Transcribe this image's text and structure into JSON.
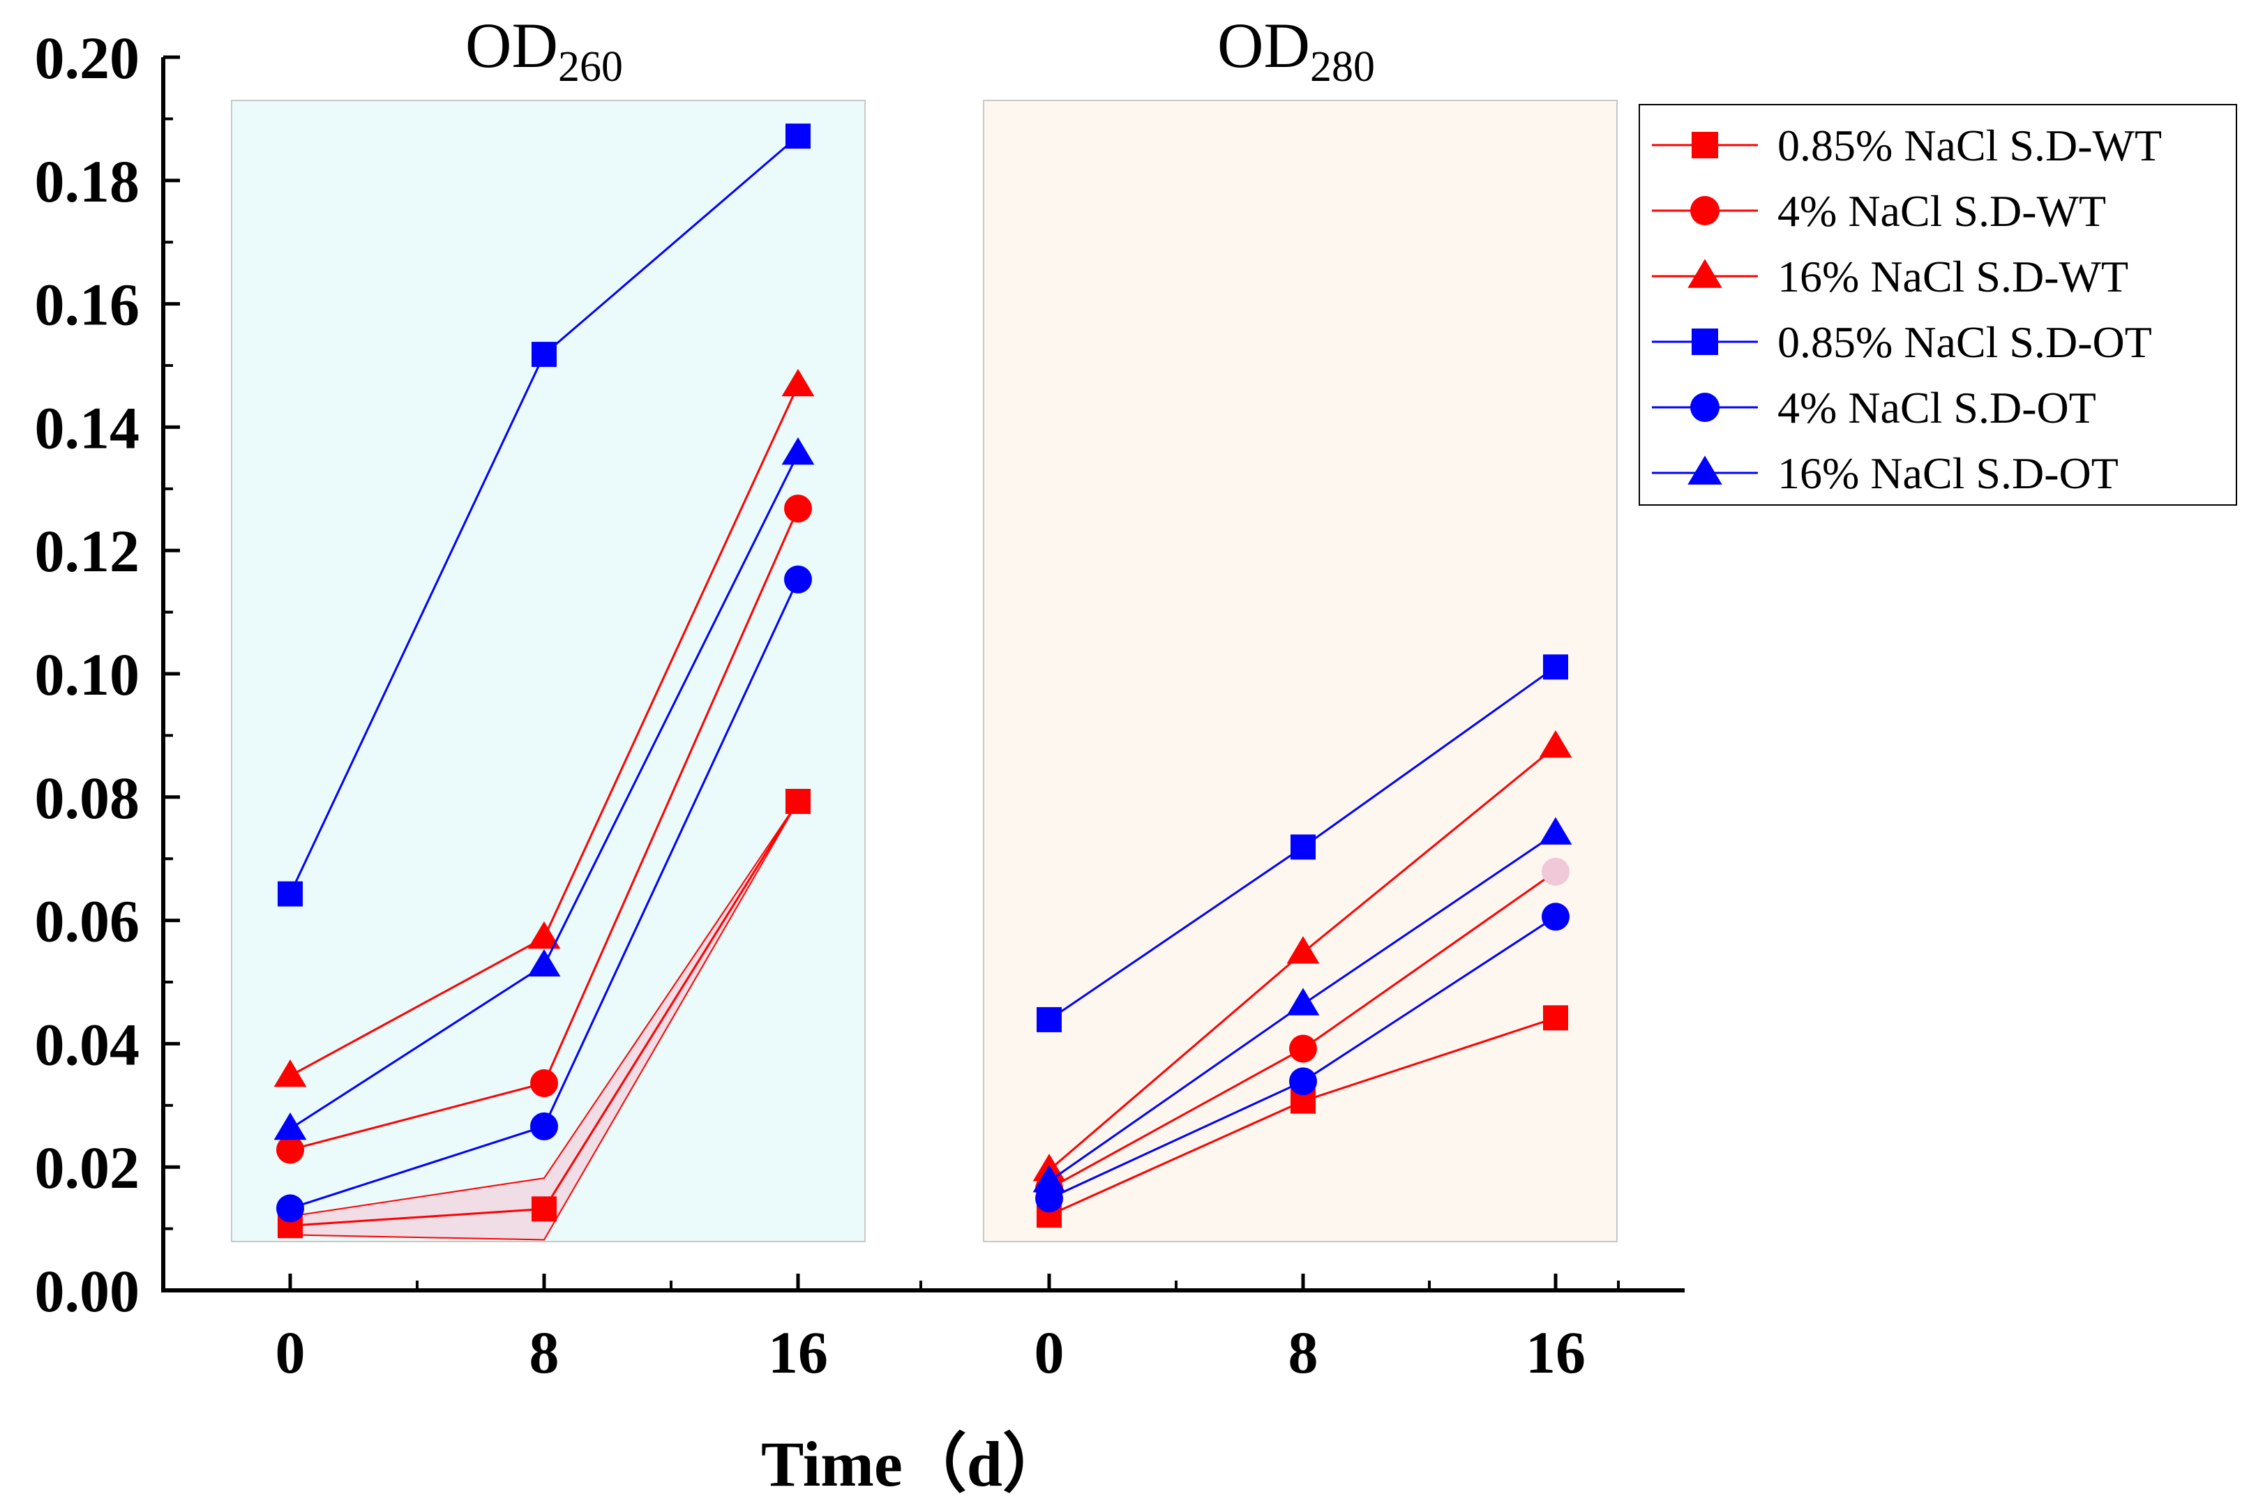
{
  "chart_data": {
    "type": "line",
    "xlabel": "Time（d）",
    "ylabel": "",
    "ylim": [
      0,
      0.2
    ],
    "yticks": [
      "0.00",
      "0.02",
      "0.04",
      "0.06",
      "0.08",
      "0.10",
      "0.12",
      "0.14",
      "0.16",
      "0.18",
      "0.20"
    ],
    "ytick_values": [
      0,
      0.02,
      0.04,
      0.06,
      0.08,
      0.1,
      0.12,
      0.14,
      0.16,
      0.18,
      0.2
    ],
    "x": [
      0,
      8,
      16
    ],
    "xtick_labels": [
      "0",
      "8",
      "16"
    ],
    "grid": false,
    "legend_position": "right",
    "colors": {
      "wt": "#ff0000",
      "ot": "#0000ff",
      "od260_bg": "#ebfafa",
      "od280_bg": "#fdf7f0",
      "band": "#f2d9e3"
    },
    "panels": [
      {
        "title": "OD",
        "subscript": "260",
        "series": [
          {
            "name": "0.85% NaCl S.D-WT",
            "values": [
              0.0105,
              0.0132,
              0.0793
            ]
          },
          {
            "name": "4% NaCl S.D-WT",
            "values": [
              0.0228,
              0.0336,
              0.1268
            ]
          },
          {
            "name": "16% NaCl S.D-WT",
            "values": [
              0.0348,
              0.0572,
              0.1468
            ]
          },
          {
            "name": "0.85% NaCl S.D-OT",
            "values": [
              0.0643,
              0.1518,
              0.1872
            ]
          },
          {
            "name": "4% NaCl S.D-OT",
            "values": [
              0.0133,
              0.0266,
              0.1153
            ]
          },
          {
            "name": "16% NaCl  S.D-OT",
            "values": [
              0.0262,
              0.0527,
              0.1357
            ]
          }
        ]
      },
      {
        "title": "OD",
        "subscript": "280",
        "series": [
          {
            "name": "0.85% NaCl S.D-WT",
            "values": [
              0.0122,
              0.0307,
              0.0442
            ]
          },
          {
            "name": "4% NaCl S.D-WT",
            "values": [
              0.0165,
              0.0392,
              0.0679
            ]
          },
          {
            "name": "16% NaCl S.D-WT",
            "values": [
              0.0195,
              0.0548,
              0.0882
            ]
          },
          {
            "name": "0.85% NaCl S.D-OT",
            "values": [
              0.0439,
              0.0719,
              0.1011
            ]
          },
          {
            "name": "4% NaCl S.D-OT",
            "values": [
              0.0149,
              0.0339,
              0.0606
            ]
          },
          {
            "name": "16% NaCl  S.D-OT",
            "values": [
              0.0177,
              0.0464,
              0.0741
            ]
          }
        ]
      }
    ],
    "legend": [
      {
        "name": "0.85% NaCl S.D-WT",
        "marker": "square",
        "color": "#ff0000"
      },
      {
        "name": "4% NaCl S.D-WT",
        "marker": "circle",
        "color": "#ff0000"
      },
      {
        "name": "16% NaCl S.D-WT",
        "marker": "triangle",
        "color": "#ff0000"
      },
      {
        "name": "0.85% NaCl S.D-OT",
        "marker": "square",
        "color": "#0000ff"
      },
      {
        "name": "4% NaCl S.D-OT",
        "marker": "circle",
        "color": "#0000ff"
      },
      {
        "name": "16% NaCl  S.D-OT",
        "marker": "triangle",
        "color": "#0000ff"
      }
    ]
  }
}
